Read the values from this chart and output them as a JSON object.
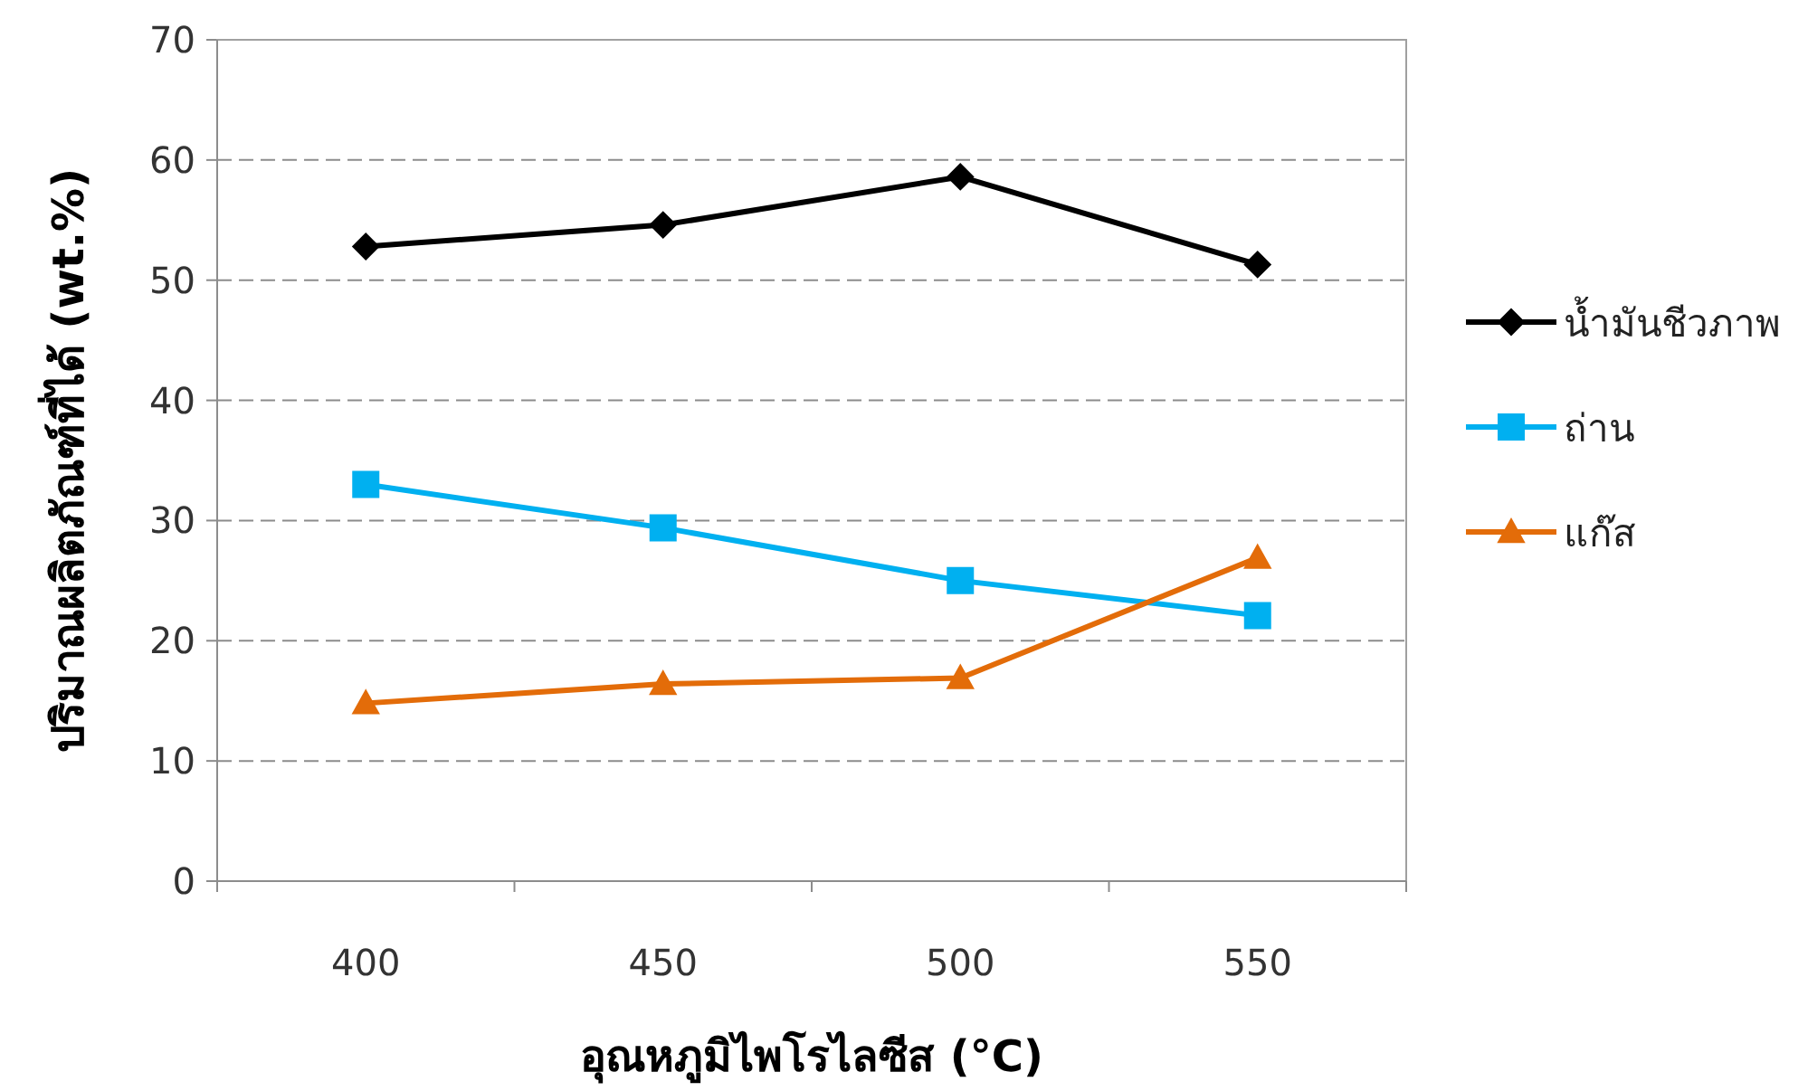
{
  "chart_data": {
    "type": "line",
    "xlabel": "อุณหภูมิไพโรไลซีส (°C)",
    "ylabel": "ปริมาณผลิตภัณฑ์ที่ได้ (wt.%)",
    "categories": [
      "400",
      "450",
      "500",
      "550"
    ],
    "series": [
      {
        "name": "น้ำมันชีวภาพ",
        "color": "#000000",
        "marker": "diamond",
        "values": [
          52.8,
          54.6,
          58.6,
          51.3
        ]
      },
      {
        "name": "ถ่าน",
        "color": "#00b0f0",
        "marker": "square",
        "values": [
          33.0,
          29.4,
          25.0,
          22.1
        ]
      },
      {
        "name": "แก๊ส",
        "color": "#e36c09",
        "marker": "triangle",
        "values": [
          14.8,
          16.4,
          16.9,
          26.9
        ]
      }
    ],
    "ylim": [
      0,
      70
    ],
    "yticks": [
      0,
      10,
      20,
      30,
      40,
      50,
      60,
      70
    ],
    "grid": "y",
    "legend": "right",
    "line_style": "solid"
  }
}
